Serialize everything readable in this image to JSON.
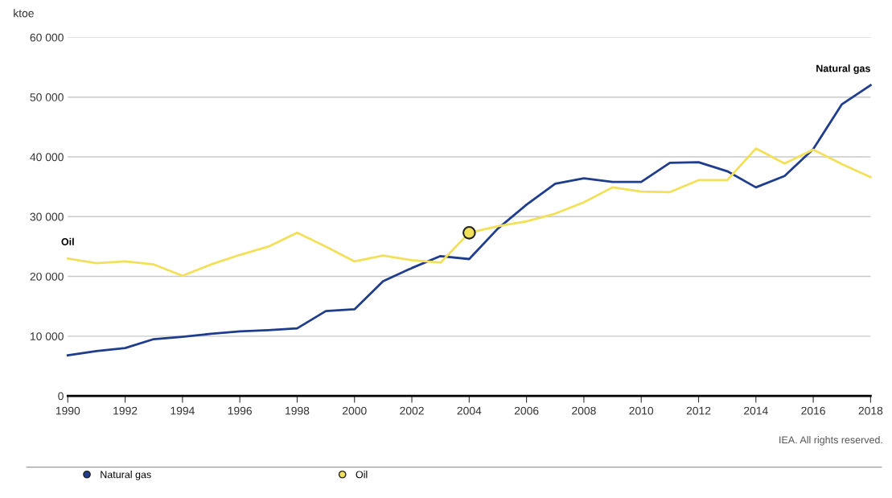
{
  "chart_data": {
    "type": "line",
    "ylabel": "ktoe",
    "x": [
      1990,
      1991,
      1992,
      1993,
      1994,
      1995,
      1996,
      1997,
      1998,
      1999,
      2000,
      2001,
      2002,
      2003,
      2004,
      2005,
      2006,
      2007,
      2008,
      2009,
      2010,
      2011,
      2012,
      2013,
      2014,
      2015,
      2016,
      2017,
      2018
    ],
    "series": [
      {
        "name": "Natural gas",
        "color": "#1f3d8c",
        "values": [
          6800,
          7500,
          8000,
          9500,
          9900,
          10400,
          10800,
          11000,
          11300,
          14200,
          14500,
          19200,
          21400,
          23400,
          22900,
          28000,
          32000,
          35500,
          36400,
          35800,
          35800,
          39000,
          39100,
          37600,
          34900,
          36800,
          41300,
          48800,
          52000
        ]
      },
      {
        "name": "Oil",
        "color": "#f2e05a",
        "values": [
          23000,
          22200,
          22500,
          22000,
          20100,
          22000,
          23600,
          25000,
          27300,
          25000,
          22500,
          23500,
          22700,
          22300,
          27300,
          28400,
          29200,
          30500,
          32400,
          34900,
          34200,
          34100,
          36100,
          36100,
          41400,
          38900,
          41200,
          38800,
          36600
        ]
      },
      {
        "type": "scatter",
        "color": "#f2e05a",
        "marker": "circle",
        "x": [
          2004
        ],
        "values": [
          27300
        ]
      }
    ],
    "xlim": [
      1990,
      2018
    ],
    "xticks": [
      1990,
      1992,
      1994,
      1996,
      1998,
      2000,
      2002,
      2004,
      2006,
      2008,
      2010,
      2012,
      2014,
      2016,
      2018
    ],
    "ylim": [
      0,
      60000
    ],
    "yticks": [
      {
        "value": 0,
        "label": "0"
      },
      {
        "value": 10000,
        "label": "10 000"
      },
      {
        "value": 20000,
        "label": "20 000"
      },
      {
        "value": 30000,
        "label": "30 000"
      },
      {
        "value": 40000,
        "label": "40 000"
      },
      {
        "value": 50000,
        "label": "50 000"
      },
      {
        "value": 60000,
        "label": "60 000"
      }
    ],
    "grid": "y",
    "legend": "bottom",
    "marker": "none",
    "line_style": "solid",
    "annotations": [
      {
        "text": "Oil",
        "x": 1990,
        "y": 23000
      },
      {
        "text": "Natural gas",
        "x": 2018,
        "y": 52000
      },
      "IEA. All rights reserved."
    ]
  }
}
